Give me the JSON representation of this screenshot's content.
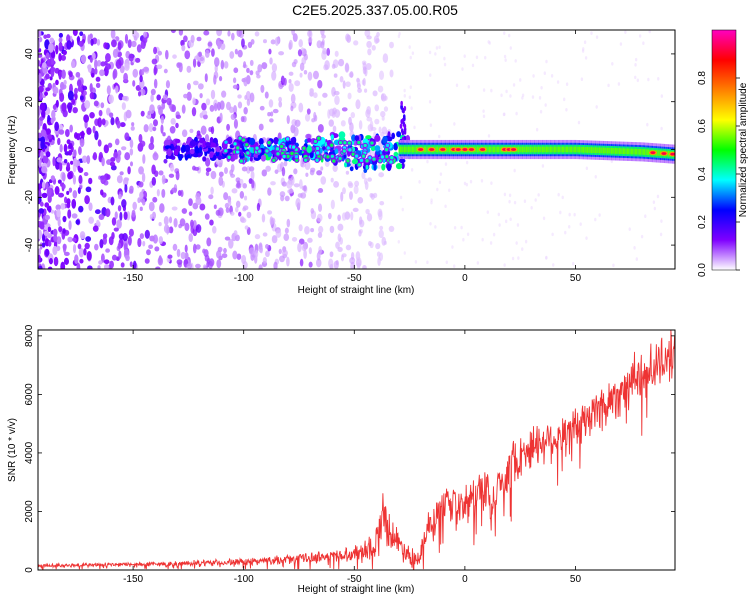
{
  "title": "C2E5.2025.337.05.00.R05",
  "chart_data": [
    {
      "type": "heatmap",
      "xlabel": "Height of straight line (km)",
      "ylabel": "Frequency (Hz)",
      "xlim": [
        -193,
        95
      ],
      "ylim": [
        -50,
        50
      ],
      "xticks": [
        -150,
        -100,
        -50,
        0,
        50
      ],
      "yticks": [
        -40,
        -20,
        0,
        20,
        40
      ],
      "colorbar": {
        "label": "Normalized spectral amplitude",
        "range": [
          0,
          1
        ],
        "ticks": [
          "0.0",
          "0.2",
          "0.4",
          "0.6",
          "0.8"
        ],
        "colors": [
          "#ffffff",
          "#7f00ff",
          "#0000ff",
          "#00ffff",
          "#00ff00",
          "#ffff00",
          "#ff8000",
          "#ff0000",
          "#ff00c0"
        ]
      },
      "ridge": [
        {
          "x": -135,
          "y": 0
        },
        {
          "x": -100,
          "y": 0
        },
        {
          "x": -60,
          "y": 0
        },
        {
          "x": -45,
          "y": -2
        },
        {
          "x": -30,
          "y": 0
        },
        {
          "x": -10,
          "y": 0
        },
        {
          "x": 0,
          "y": 0
        },
        {
          "x": 20,
          "y": 0
        },
        {
          "x": 50,
          "y": 0
        },
        {
          "x": 80,
          "y": -1
        },
        {
          "x": 95,
          "y": -2
        }
      ]
    },
    {
      "type": "line",
      "xlabel": "Height of straight line (km)",
      "ylabel": "SNR (10 * v/v)",
      "xlim": [
        -193,
        95
      ],
      "ylim": [
        0,
        8200
      ],
      "xticks": [
        -150,
        -100,
        -50,
        0,
        50
      ],
      "yticks": [
        0,
        2000,
        4000,
        6000,
        8000
      ],
      "color": "#ee3333",
      "x": [
        -193,
        -180,
        -160,
        -140,
        -120,
        -100,
        -90,
        -80,
        -70,
        -60,
        -50,
        -45,
        -40,
        -37,
        -35,
        -33,
        -30,
        -27,
        -25,
        -22,
        -20,
        -17,
        -15,
        -12,
        -10,
        -7,
        -5,
        -3,
        0,
        5,
        10,
        12,
        15,
        20,
        25,
        30,
        35,
        40,
        45,
        50,
        55,
        60,
        65,
        70,
        75,
        80,
        85,
        90,
        95
      ],
      "values": [
        150,
        160,
        180,
        200,
        230,
        280,
        320,
        360,
        420,
        480,
        560,
        700,
        900,
        2100,
        1500,
        1200,
        900,
        700,
        500,
        400,
        600,
        1500,
        1300,
        2000,
        2200,
        2100,
        2300,
        2000,
        2300,
        2600,
        2900,
        1800,
        2900,
        3500,
        3900,
        4200,
        4400,
        4500,
        4600,
        4800,
        5100,
        5500,
        5700,
        6100,
        6400,
        6600,
        6900,
        7200,
        7300
      ],
      "noise_amplitude": [
        80,
        80,
        90,
        100,
        120,
        140,
        160,
        180,
        220,
        260,
        300,
        500,
        700,
        900,
        800,
        700,
        600,
        500,
        400,
        300,
        400,
        700,
        700,
        700,
        700,
        700,
        700,
        700,
        800,
        800,
        900,
        700,
        900,
        900,
        900,
        900,
        900,
        900,
        900,
        900,
        1000,
        1000,
        1000,
        1000,
        1000,
        1000,
        1000,
        1000,
        900
      ]
    }
  ]
}
